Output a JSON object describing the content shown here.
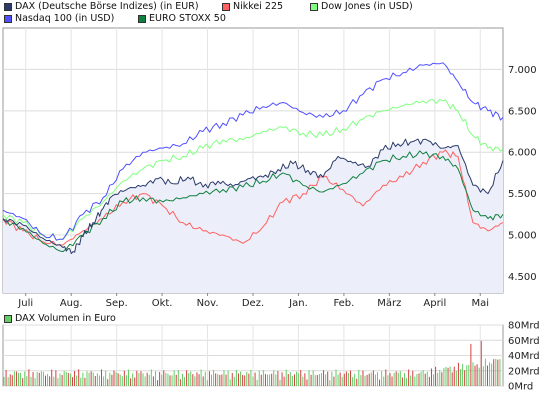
{
  "chart_data": {
    "type": "line",
    "legend": [
      {
        "name": "DAX (Deutsche Börse Indizes) (in EUR)",
        "color": "#2a3a6a"
      },
      {
        "name": "Nikkei 225",
        "color": "#ff6060"
      },
      {
        "name": "Dow Jones (in USD)",
        "color": "#80ff80"
      },
      {
        "name": "Nasdaq 100 (in USD)",
        "color": "#5050ff"
      },
      {
        "name": "EURO STOXX 50",
        "color": "#108040"
      }
    ],
    "y_ticks": [
      "7.000",
      "6.500",
      "6.000",
      "5.500",
      "5.000",
      "4.500"
    ],
    "ylim": [
      4300,
      7500
    ],
    "x_ticks": [
      "Juli",
      "Aug.",
      "Sep.",
      "Okt.",
      "Nov.",
      "Dez.",
      "Jan.",
      "Feb.",
      "März",
      "April",
      "Mai"
    ],
    "grid": true,
    "series": [
      {
        "name": "DAX (Deutsche Börse Indizes) (in EUR)",
        "color": "#2a3a6a",
        "fill": "#eceffa",
        "x": [
          0,
          4,
          8,
          12,
          14,
          16,
          18,
          20,
          22,
          25,
          28,
          31,
          34,
          37,
          40,
          43,
          46,
          49,
          52,
          55,
          58,
          61,
          64,
          67,
          70,
          73,
          76,
          79,
          82,
          85,
          88,
          91,
          94,
          97,
          100
        ],
        "values": [
          5200,
          5120,
          4960,
          4850,
          4800,
          4980,
          5150,
          5320,
          5480,
          5560,
          5600,
          5680,
          5620,
          5700,
          5580,
          5650,
          5590,
          5680,
          5700,
          5790,
          5860,
          5780,
          5700,
          5950,
          5870,
          5830,
          6030,
          6100,
          6130,
          6140,
          6050,
          6080,
          5600,
          5500,
          5900
        ]
      },
      {
        "name": "Nikkei 225",
        "color": "#ff6060",
        "x": [
          0,
          4,
          8,
          12,
          16,
          20,
          24,
          28,
          32,
          36,
          40,
          44,
          48,
          52,
          56,
          60,
          64,
          68,
          72,
          76,
          80,
          84,
          88,
          91,
          94,
          97,
          100
        ],
        "values": [
          5200,
          5050,
          4920,
          4880,
          5050,
          5200,
          5400,
          5500,
          5350,
          5150,
          5050,
          5000,
          4900,
          5100,
          5400,
          5500,
          5700,
          5550,
          5350,
          5600,
          5700,
          5880,
          6000,
          5950,
          5150,
          5050,
          5150
        ]
      },
      {
        "name": "Dow Jones (in USD)",
        "color": "#80ff80",
        "x": [
          0,
          4,
          8,
          12,
          16,
          20,
          24,
          28,
          32,
          36,
          40,
          44,
          48,
          52,
          56,
          60,
          64,
          68,
          72,
          76,
          80,
          84,
          88,
          91,
          94,
          97,
          100
        ],
        "values": [
          5250,
          5150,
          5000,
          4950,
          5200,
          5400,
          5650,
          5800,
          5900,
          5950,
          6050,
          6150,
          6150,
          6250,
          6300,
          6230,
          6200,
          6280,
          6400,
          6500,
          6560,
          6620,
          6620,
          6500,
          6200,
          6050,
          6040
        ]
      },
      {
        "name": "Nasdaq 100 (in USD)",
        "color": "#5050ff",
        "x": [
          0,
          4,
          8,
          12,
          16,
          20,
          24,
          28,
          32,
          36,
          40,
          44,
          48,
          52,
          56,
          60,
          64,
          68,
          72,
          76,
          80,
          84,
          88,
          91,
          94,
          97,
          100
        ],
        "values": [
          5300,
          5200,
          5000,
          4950,
          5250,
          5450,
          5800,
          6000,
          6050,
          6100,
          6250,
          6350,
          6450,
          6550,
          6600,
          6480,
          6420,
          6500,
          6700,
          6880,
          6960,
          7050,
          7080,
          6850,
          6600,
          6500,
          6420
        ]
      },
      {
        "name": "EURO STOXX 50",
        "color": "#108040",
        "x": [
          0,
          4,
          8,
          12,
          16,
          20,
          24,
          28,
          32,
          36,
          40,
          44,
          48,
          52,
          56,
          60,
          64,
          68,
          72,
          76,
          80,
          84,
          88,
          91,
          94,
          97,
          100
        ],
        "values": [
          5180,
          5080,
          4900,
          4800,
          5000,
          5200,
          5400,
          5450,
          5400,
          5450,
          5500,
          5550,
          5580,
          5650,
          5750,
          5600,
          5520,
          5620,
          5750,
          5900,
          5950,
          5980,
          5950,
          5800,
          5300,
          5200,
          5250
        ]
      }
    ],
    "volume": {
      "legend": "DAX Volumen in Euro",
      "color": "#66cc66",
      "y_ticks": [
        "80Mrd",
        "60Mrd",
        "40Mrd",
        "20Mrd",
        "0Mrd"
      ],
      "ylim": [
        0,
        80
      ]
    }
  }
}
